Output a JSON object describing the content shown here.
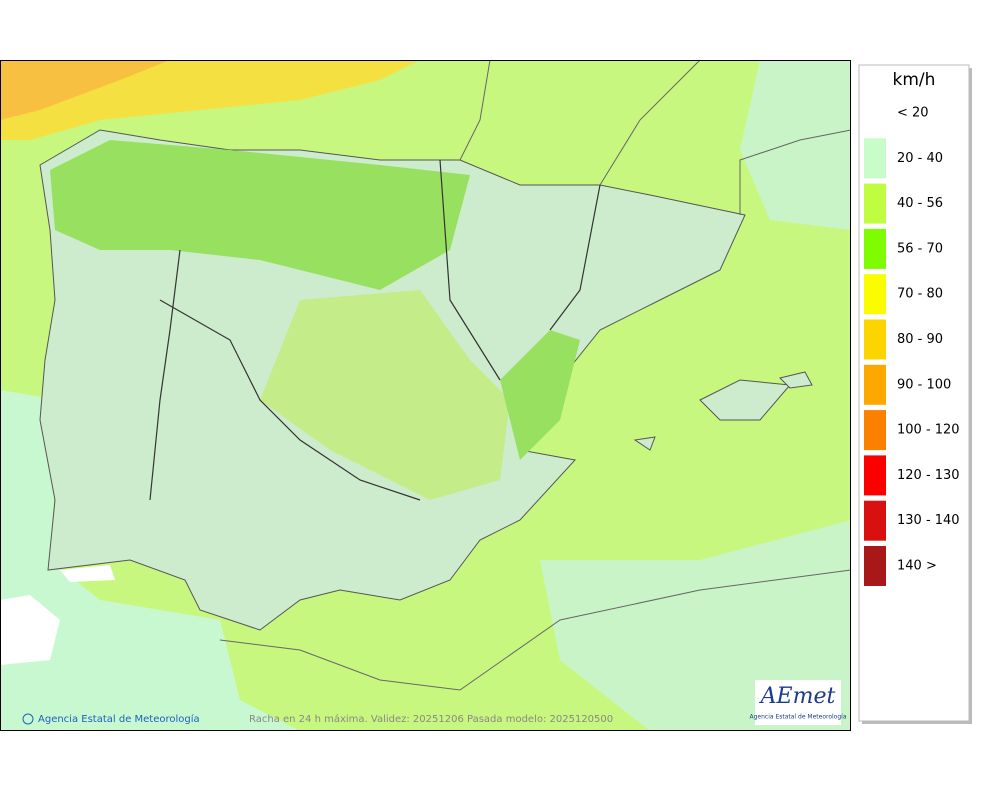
{
  "header": {
    "unit": "km/h"
  },
  "legend": {
    "items": [
      {
        "label": "< 20",
        "color": "#ffffff"
      },
      {
        "label": "20 - 40",
        "color": "#c8fcc8"
      },
      {
        "label": "40 - 56",
        "color": "#c0fc40"
      },
      {
        "label": "56 - 70",
        "color": "#80fc00"
      },
      {
        "label": "70 - 80",
        "color": "#fcfc00"
      },
      {
        "label": "80 - 90",
        "color": "#fcd400"
      },
      {
        "label": "90 - 100",
        "color": "#fca800"
      },
      {
        "label": "100 - 120",
        "color": "#fc8000"
      },
      {
        "label": "120 - 130",
        "color": "#fc0000"
      },
      {
        "label": "130 - 140",
        "color": "#d81010"
      },
      {
        "label": "140 >",
        "color": "#a81818"
      }
    ]
  },
  "map": {
    "copyright": "Agencia Estatal de Meteorología",
    "caption": "Racha en 24 h máxima. Validez: 20251206 Pasada modelo: 2025120500",
    "logo": {
      "name": "AEmet",
      "subtitle": "Agencia Estatal de Meteorología"
    }
  }
}
